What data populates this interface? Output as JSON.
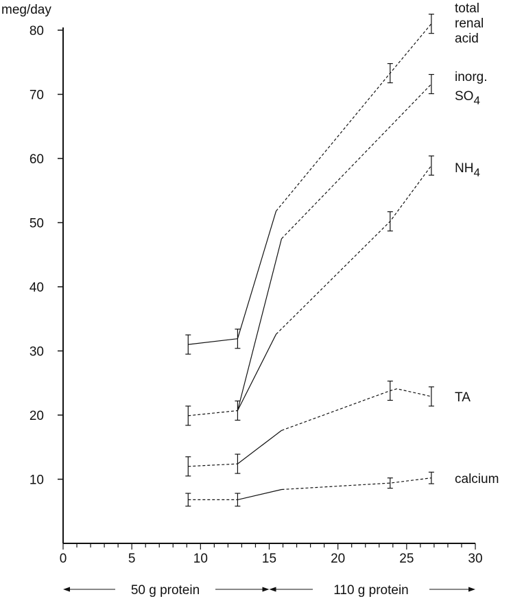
{
  "chart_data": {
    "type": "line",
    "ylabel": "meg/day",
    "xlim": [
      0,
      30
    ],
    "ylim": [
      0,
      80
    ],
    "x_ticks": [
      "0",
      "5",
      "10",
      "15",
      "20",
      "25",
      "30"
    ],
    "y_ticks": [
      "10",
      "20",
      "30",
      "40",
      "50",
      "60",
      "70",
      "80"
    ],
    "grid": false,
    "legend": "none",
    "series": [
      {
        "name": "total renal acid",
        "label_lines": [
          "total",
          "renal",
          "acid"
        ],
        "segments": [
          {
            "style": "solid",
            "points": [
              [
                9.1,
                31.0
              ],
              [
                12.7,
                31.9
              ]
            ]
          },
          {
            "style": "solid",
            "points": [
              [
                12.7,
                31.9
              ],
              [
                15.5,
                51.8
              ]
            ]
          },
          {
            "style": "dashed",
            "points": [
              [
                15.5,
                51.8
              ],
              [
                23.8,
                73.3
              ],
              [
                26.8,
                81.0
              ]
            ]
          }
        ],
        "error_bars": [
          [
            9.1,
            31.0,
            1.5
          ],
          [
            12.7,
            31.9,
            1.5
          ],
          [
            23.8,
            73.3,
            1.5
          ],
          [
            26.8,
            81.0,
            1.5
          ]
        ]
      },
      {
        "name": "inorg. SO4",
        "label_main": "SO",
        "label_sub": "4",
        "label_prefix": "inorg.",
        "segments": [
          {
            "style": "dashed",
            "points": [
              [
                9.1,
                19.9
              ],
              [
                12.7,
                20.7
              ]
            ]
          },
          {
            "style": "solid",
            "points": [
              [
                12.7,
                20.7
              ],
              [
                15.9,
                47.5
              ]
            ]
          },
          {
            "style": "dashed",
            "points": [
              [
                15.9,
                47.5
              ],
              [
                26.8,
                71.6
              ]
            ]
          }
        ],
        "error_bars": [
          [
            9.1,
            19.9,
            1.5
          ],
          [
            12.7,
            20.7,
            1.5
          ],
          [
            26.8,
            71.6,
            1.5
          ]
        ]
      },
      {
        "name": "NH4",
        "label_main": "NH",
        "label_sub": "4",
        "segments": [
          {
            "style": "solid",
            "points": [
              [
                12.7,
                20.7
              ],
              [
                15.5,
                32.6
              ]
            ]
          },
          {
            "style": "dashed",
            "points": [
              [
                15.5,
                32.6
              ],
              [
                23.8,
                50.2
              ],
              [
                26.8,
                58.9
              ]
            ]
          }
        ],
        "error_bars": [
          [
            23.8,
            50.2,
            1.5
          ],
          [
            26.8,
            58.9,
            1.5
          ]
        ]
      },
      {
        "name": "TA",
        "segments": [
          {
            "style": "dashed",
            "points": [
              [
                9.1,
                12.0
              ],
              [
                12.7,
                12.4
              ]
            ]
          },
          {
            "style": "solid",
            "points": [
              [
                12.7,
                12.4
              ],
              [
                15.9,
                17.6
              ]
            ]
          },
          {
            "style": "dashed",
            "points": [
              [
                15.9,
                17.6
              ],
              [
                23.8,
                23.8
              ],
              [
                24.3,
                24.1
              ],
              [
                26.8,
                22.9
              ]
            ]
          }
        ],
        "error_bars": [
          [
            9.1,
            12.0,
            1.5
          ],
          [
            12.7,
            12.4,
            1.5
          ],
          [
            23.8,
            23.8,
            1.5
          ],
          [
            26.8,
            22.9,
            1.5
          ]
        ]
      },
      {
        "name": "calcium",
        "segments": [
          {
            "style": "dashed",
            "points": [
              [
                9.1,
                6.8
              ],
              [
                12.7,
                6.8
              ]
            ]
          },
          {
            "style": "solid",
            "points": [
              [
                12.7,
                6.8
              ],
              [
                15.9,
                8.4
              ]
            ]
          },
          {
            "style": "dashed",
            "points": [
              [
                15.9,
                8.4
              ],
              [
                23.8,
                9.4
              ],
              [
                26.8,
                10.2
              ]
            ]
          }
        ],
        "error_bars": [
          [
            9.1,
            6.8,
            1.0
          ],
          [
            12.7,
            6.8,
            1.0
          ],
          [
            23.8,
            9.4,
            0.8
          ],
          [
            26.8,
            10.2,
            0.9
          ]
        ]
      }
    ],
    "annotations": [
      {
        "text": "50 g protein",
        "x_range": [
          0,
          15
        ]
      },
      {
        "text": "110 g protein",
        "x_range": [
          15,
          30
        ]
      }
    ]
  }
}
